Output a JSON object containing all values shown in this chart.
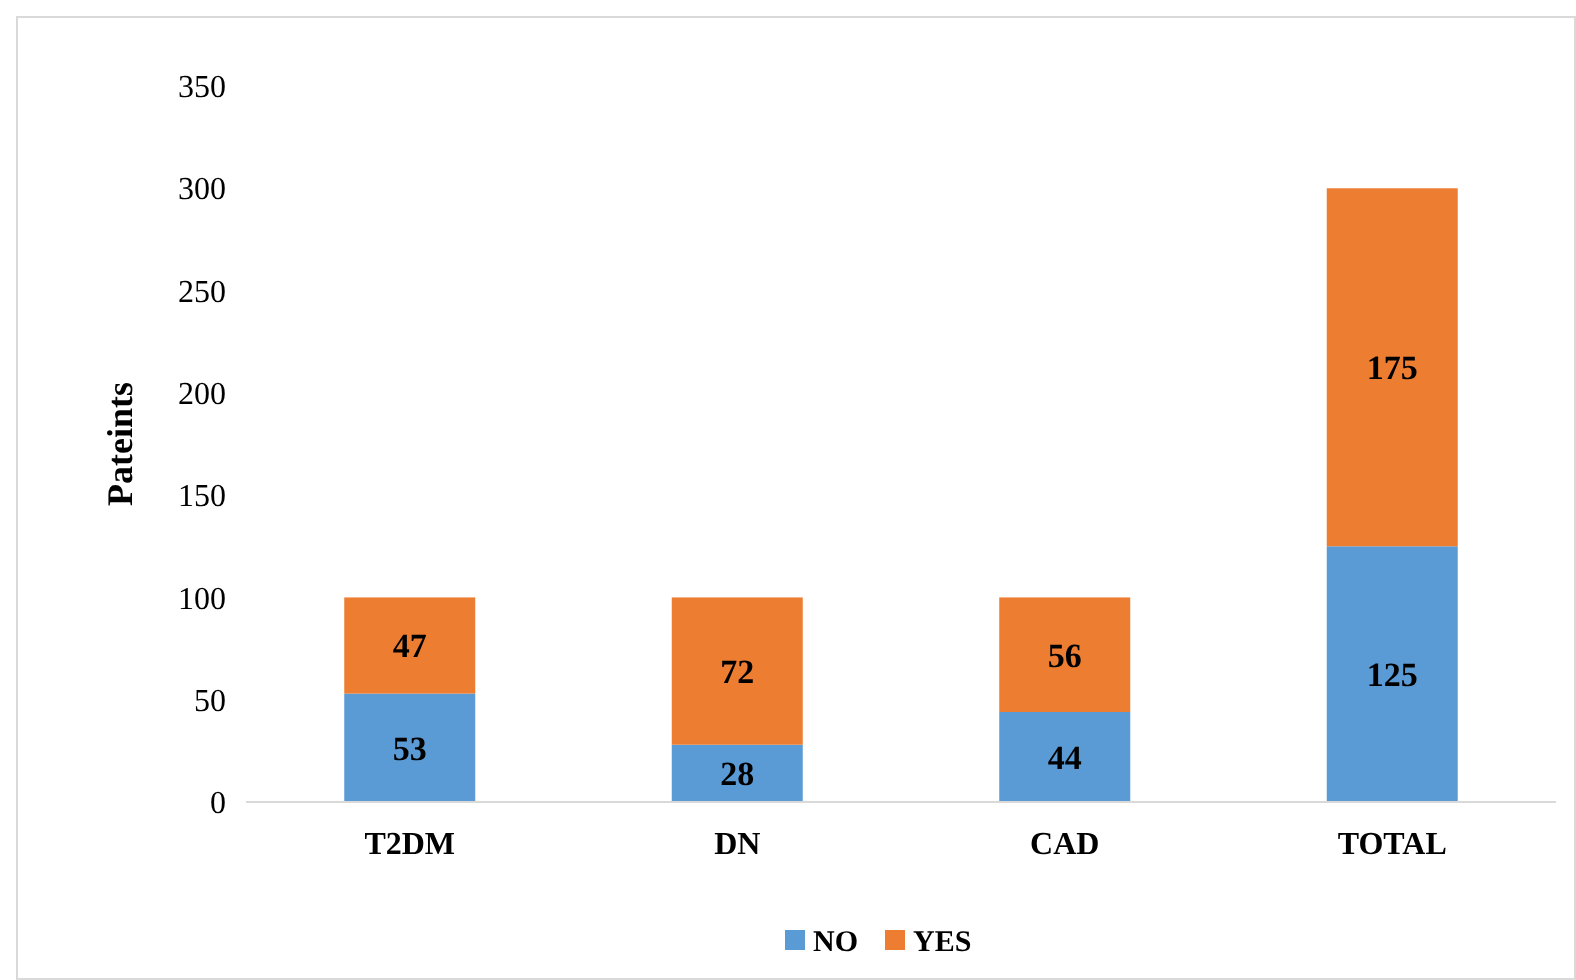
{
  "chart_data": {
    "type": "bar",
    "ylabel": "Pateints",
    "categories": [
      "T2DM",
      "DN",
      "CAD",
      "TOTAL"
    ],
    "stacked": true,
    "series": [
      {
        "name": "NO",
        "color": "#5b9bd5",
        "values": [
          53,
          28,
          44,
          125
        ]
      },
      {
        "name": "YES",
        "color": "#ed7d31",
        "values": [
          47,
          72,
          56,
          175
        ]
      }
    ],
    "ylim": [
      0,
      350
    ],
    "yticks": [
      0,
      50,
      100,
      150,
      200,
      250,
      300,
      350
    ],
    "grid": false,
    "legend": "bottom",
    "data_labels": true
  }
}
